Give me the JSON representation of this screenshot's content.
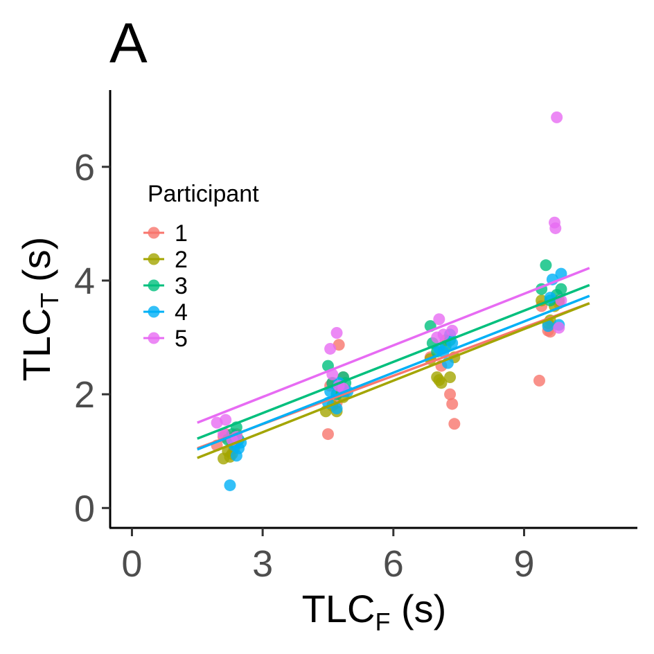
{
  "panel_tag": "A",
  "chart_data": {
    "type": "scatter",
    "xlabel": "TLC",
    "xlabel_sub": "F",
    "xlabel_unit": " (s)",
    "ylabel": "TLC",
    "ylabel_sub": "T",
    "ylabel_unit": " (s)",
    "xlim": [
      -0.5,
      11.6
    ],
    "ylim": [
      -0.35,
      7.35
    ],
    "x_ticks": [
      0,
      3,
      6,
      9
    ],
    "y_ticks": [
      0,
      2,
      4,
      6
    ],
    "grid": false,
    "legend": {
      "title": "Participant",
      "position": "top-left"
    },
    "series": [
      {
        "name": "1",
        "color": "#F8766D",
        "points": [
          [
            1.95,
            1.1
          ],
          [
            2.1,
            1.25
          ],
          [
            2.15,
            1.3
          ],
          [
            2.3,
            1.15
          ],
          [
            2.4,
            1.3
          ],
          [
            4.5,
            1.3
          ],
          [
            4.55,
            2.15
          ],
          [
            4.6,
            2.2
          ],
          [
            4.7,
            1.85
          ],
          [
            4.75,
            2.87
          ],
          [
            4.85,
            2.3
          ],
          [
            4.9,
            2.05
          ],
          [
            6.85,
            2.65
          ],
          [
            7.1,
            2.5
          ],
          [
            7.2,
            2.95
          ],
          [
            7.3,
            2.0
          ],
          [
            7.35,
            1.83
          ],
          [
            7.4,
            1.48
          ],
          [
            9.35,
            2.24
          ],
          [
            9.4,
            3.55
          ],
          [
            9.55,
            3.12
          ],
          [
            9.6,
            3.1
          ],
          [
            9.8,
            3.6
          ]
        ],
        "fit": {
          "x": [
            1.5,
            10.5
          ],
          "y": [
            1.05,
            3.6
          ]
        }
      },
      {
        "name": "2",
        "color": "#A3A500",
        "points": [
          [
            2.1,
            0.87
          ],
          [
            2.2,
            1.0
          ],
          [
            2.25,
            0.9
          ],
          [
            2.3,
            0.95
          ],
          [
            2.35,
            1.05
          ],
          [
            4.45,
            1.7
          ],
          [
            4.6,
            1.8
          ],
          [
            4.7,
            1.7
          ],
          [
            4.8,
            2.05
          ],
          [
            4.85,
            1.95
          ],
          [
            6.85,
            2.62
          ],
          [
            7.0,
            2.3
          ],
          [
            7.05,
            2.25
          ],
          [
            7.1,
            2.2
          ],
          [
            7.3,
            2.3
          ],
          [
            7.4,
            2.65
          ],
          [
            9.4,
            3.65
          ],
          [
            9.55,
            3.25
          ],
          [
            9.6,
            3.3
          ],
          [
            9.7,
            3.55
          ],
          [
            9.8,
            3.65
          ]
        ],
        "fit": {
          "x": [
            1.5,
            10.5
          ],
          "y": [
            0.88,
            3.6
          ]
        }
      },
      {
        "name": "3",
        "color": "#00BF7D",
        "points": [
          [
            2.2,
            1.2
          ],
          [
            2.3,
            1.3
          ],
          [
            2.35,
            1.15
          ],
          [
            2.4,
            1.42
          ],
          [
            2.45,
            1.2
          ],
          [
            4.5,
            2.5
          ],
          [
            4.6,
            2.2
          ],
          [
            4.7,
            2.0
          ],
          [
            4.85,
            2.3
          ],
          [
            4.9,
            2.2
          ],
          [
            6.85,
            3.2
          ],
          [
            6.9,
            2.9
          ],
          [
            7.0,
            2.75
          ],
          [
            7.2,
            2.85
          ],
          [
            7.3,
            2.95
          ],
          [
            9.4,
            3.85
          ],
          [
            9.5,
            4.27
          ],
          [
            9.6,
            3.65
          ],
          [
            9.75,
            3.75
          ],
          [
            9.85,
            3.85
          ]
        ],
        "fit": {
          "x": [
            1.5,
            10.5
          ],
          "y": [
            1.22,
            3.92
          ]
        }
      },
      {
        "name": "4",
        "color": "#00B0F6",
        "points": [
          [
            2.25,
            0.4
          ],
          [
            2.35,
            1.1
          ],
          [
            2.4,
            0.92
          ],
          [
            2.45,
            1.05
          ],
          [
            2.5,
            1.15
          ],
          [
            4.5,
            1.85
          ],
          [
            4.55,
            2.05
          ],
          [
            4.7,
            1.75
          ],
          [
            4.75,
            2.2
          ],
          [
            4.85,
            2.05
          ],
          [
            4.95,
            2.05
          ],
          [
            7.05,
            2.8
          ],
          [
            7.15,
            2.75
          ],
          [
            7.25,
            2.55
          ],
          [
            7.3,
            3.05
          ],
          [
            7.35,
            2.9
          ],
          [
            9.55,
            3.2
          ],
          [
            9.6,
            3.7
          ],
          [
            9.65,
            4.02
          ],
          [
            9.85,
            4.12
          ],
          [
            9.8,
            3.22
          ]
        ],
        "fit": {
          "x": [
            1.5,
            10.5
          ],
          "y": [
            1.03,
            3.73
          ]
        }
      },
      {
        "name": "5",
        "color": "#E76BF3",
        "points": [
          [
            1.95,
            1.5
          ],
          [
            2.1,
            1.3
          ],
          [
            2.15,
            1.55
          ],
          [
            2.3,
            1.2
          ],
          [
            2.4,
            1.25
          ],
          [
            4.55,
            2.8
          ],
          [
            4.6,
            2.35
          ],
          [
            4.7,
            3.08
          ],
          [
            4.75,
            2.15
          ],
          [
            4.85,
            2.1
          ],
          [
            7.0,
            3.0
          ],
          [
            7.05,
            3.32
          ],
          [
            7.15,
            3.05
          ],
          [
            7.35,
            3.12
          ],
          [
            9.7,
            5.02
          ],
          [
            9.72,
            4.92
          ],
          [
            9.75,
            6.87
          ],
          [
            9.8,
            3.17
          ],
          [
            9.85,
            3.65
          ]
        ],
        "fit": {
          "x": [
            1.5,
            10.5
          ],
          "y": [
            1.5,
            4.22
          ]
        }
      }
    ]
  }
}
